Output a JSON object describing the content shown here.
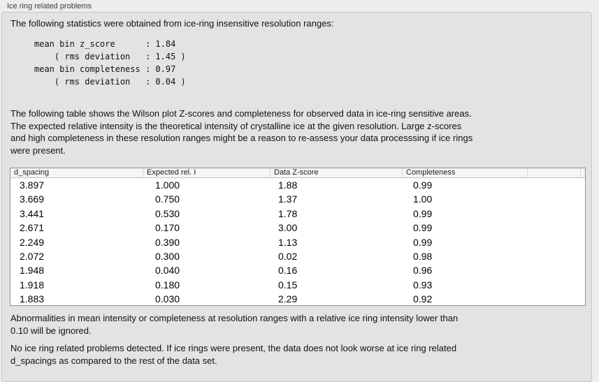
{
  "panel": {
    "title": "Ice ring related problems"
  },
  "intro": "The following statistics were obtained from ice-ring insensitive resolution ranges:",
  "stats_block": "mean bin z_score      : 1.84\n    ( rms deviation   : 1.45 )\nmean bin completeness : 0.97\n    ( rms deviation   : 0.04 )",
  "stats": {
    "mean_bin_z_score": "1.84",
    "z_score_rms_deviation": "1.45",
    "mean_bin_completeness": "0.97",
    "completeness_rms_deviation": "0.04"
  },
  "table_description": "The following table shows the Wilson plot Z-scores and completeness for observed data in ice-ring sensitive areas.\nThe expected relative intensity is the theoretical intensity of crystalline ice at the given resolution. Large z-scores\nand high completeness in these resolution ranges might be a reason to re-assess your data processsing if ice rings\nwere present.",
  "table": {
    "columns": [
      "d_spacing",
      "Expected rel. I",
      "Data Z-score",
      "Completeness"
    ],
    "rows": [
      [
        "3.897",
        "1.000",
        "1.88",
        "0.99"
      ],
      [
        "3.669",
        "0.750",
        "1.37",
        "1.00"
      ],
      [
        "3.441",
        "0.530",
        "1.78",
        "0.99"
      ],
      [
        "2.671",
        "0.170",
        "3.00",
        "0.99"
      ],
      [
        "2.249",
        "0.390",
        "1.13",
        "0.99"
      ],
      [
        "2.072",
        "0.300",
        "0.02",
        "0.98"
      ],
      [
        "1.948",
        "0.040",
        "0.16",
        "0.96"
      ],
      [
        "1.918",
        "0.180",
        "0.15",
        "0.93"
      ],
      [
        "1.883",
        "0.030",
        "2.29",
        "0.92"
      ]
    ]
  },
  "note": "Abnormalities in mean intensity or completeness at resolution ranges with a relative ice ring intensity lower than\n0.10 will be ignored.",
  "conclusion": "No ice ring related problems detected. If ice rings were present, the data does not look worse at ice ring related\nd_spacings as compared to the rest of the data set."
}
